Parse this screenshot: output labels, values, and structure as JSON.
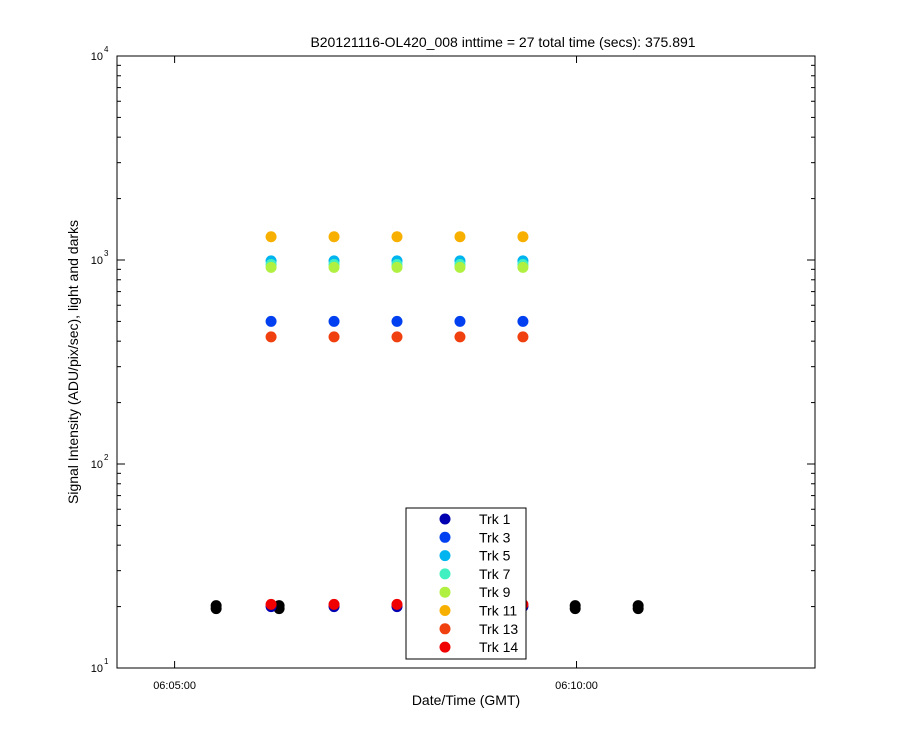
{
  "chart_data": {
    "type": "scatter",
    "title": "B20121116-OL420_008 inttime = 27 total time (secs): 375.891",
    "xlabel": "Date/Time (GMT)",
    "ylabel": "Signal Intensity (ADU/pix/sec), light and darks",
    "y_scale": "log",
    "ylim": [
      10,
      10000
    ],
    "xlim": [
      "06:04:17",
      "06:12:58"
    ],
    "x_ticks": [
      "06:05:00",
      "06:10:00"
    ],
    "y_ticks": [
      {
        "base": "10",
        "exp": "1",
        "value": 10
      },
      {
        "base": "10",
        "exp": "2",
        "value": 100
      },
      {
        "base": "10",
        "exp": "3",
        "value": 1000
      },
      {
        "base": "10",
        "exp": "4",
        "value": 10000
      }
    ],
    "grid": false,
    "legend_position": "bottom-center",
    "light_times": [
      "06:06:12",
      "06:06:59",
      "06:07:46",
      "06:08:33",
      "06:09:20"
    ],
    "dark_times": [
      "06:05:31",
      "06:06:18",
      "06:09:59",
      "06:10:46"
    ],
    "series": [
      {
        "name": "Trk 1",
        "color": "#0000b0",
        "values": [
          20,
          20,
          20,
          20,
          20
        ]
      },
      {
        "name": "Trk 3",
        "color": "#0040f0",
        "values": [
          500,
          500,
          500,
          500,
          500
        ]
      },
      {
        "name": "Trk 5",
        "color": "#00b4f0",
        "values": [
          990,
          990,
          990,
          990,
          990
        ]
      },
      {
        "name": "Trk 7",
        "color": "#40f0c0",
        "values": [
          950,
          950,
          950,
          950,
          950
        ]
      },
      {
        "name": "Trk 9",
        "color": "#b0f040",
        "values": [
          920,
          920,
          920,
          920,
          920
        ]
      },
      {
        "name": "Trk 11",
        "color": "#f8b000",
        "values": [
          1300,
          1300,
          1300,
          1300,
          1300
        ]
      },
      {
        "name": "Trk 13",
        "color": "#f04010",
        "values": [
          420,
          420,
          420,
          420,
          420
        ]
      },
      {
        "name": "Trk 14",
        "color": "#f00000",
        "values": [
          20.5,
          20.5,
          20.5,
          20.5,
          20.5
        ]
      }
    ],
    "darks": {
      "color": "#000000",
      "value": 20
    }
  }
}
